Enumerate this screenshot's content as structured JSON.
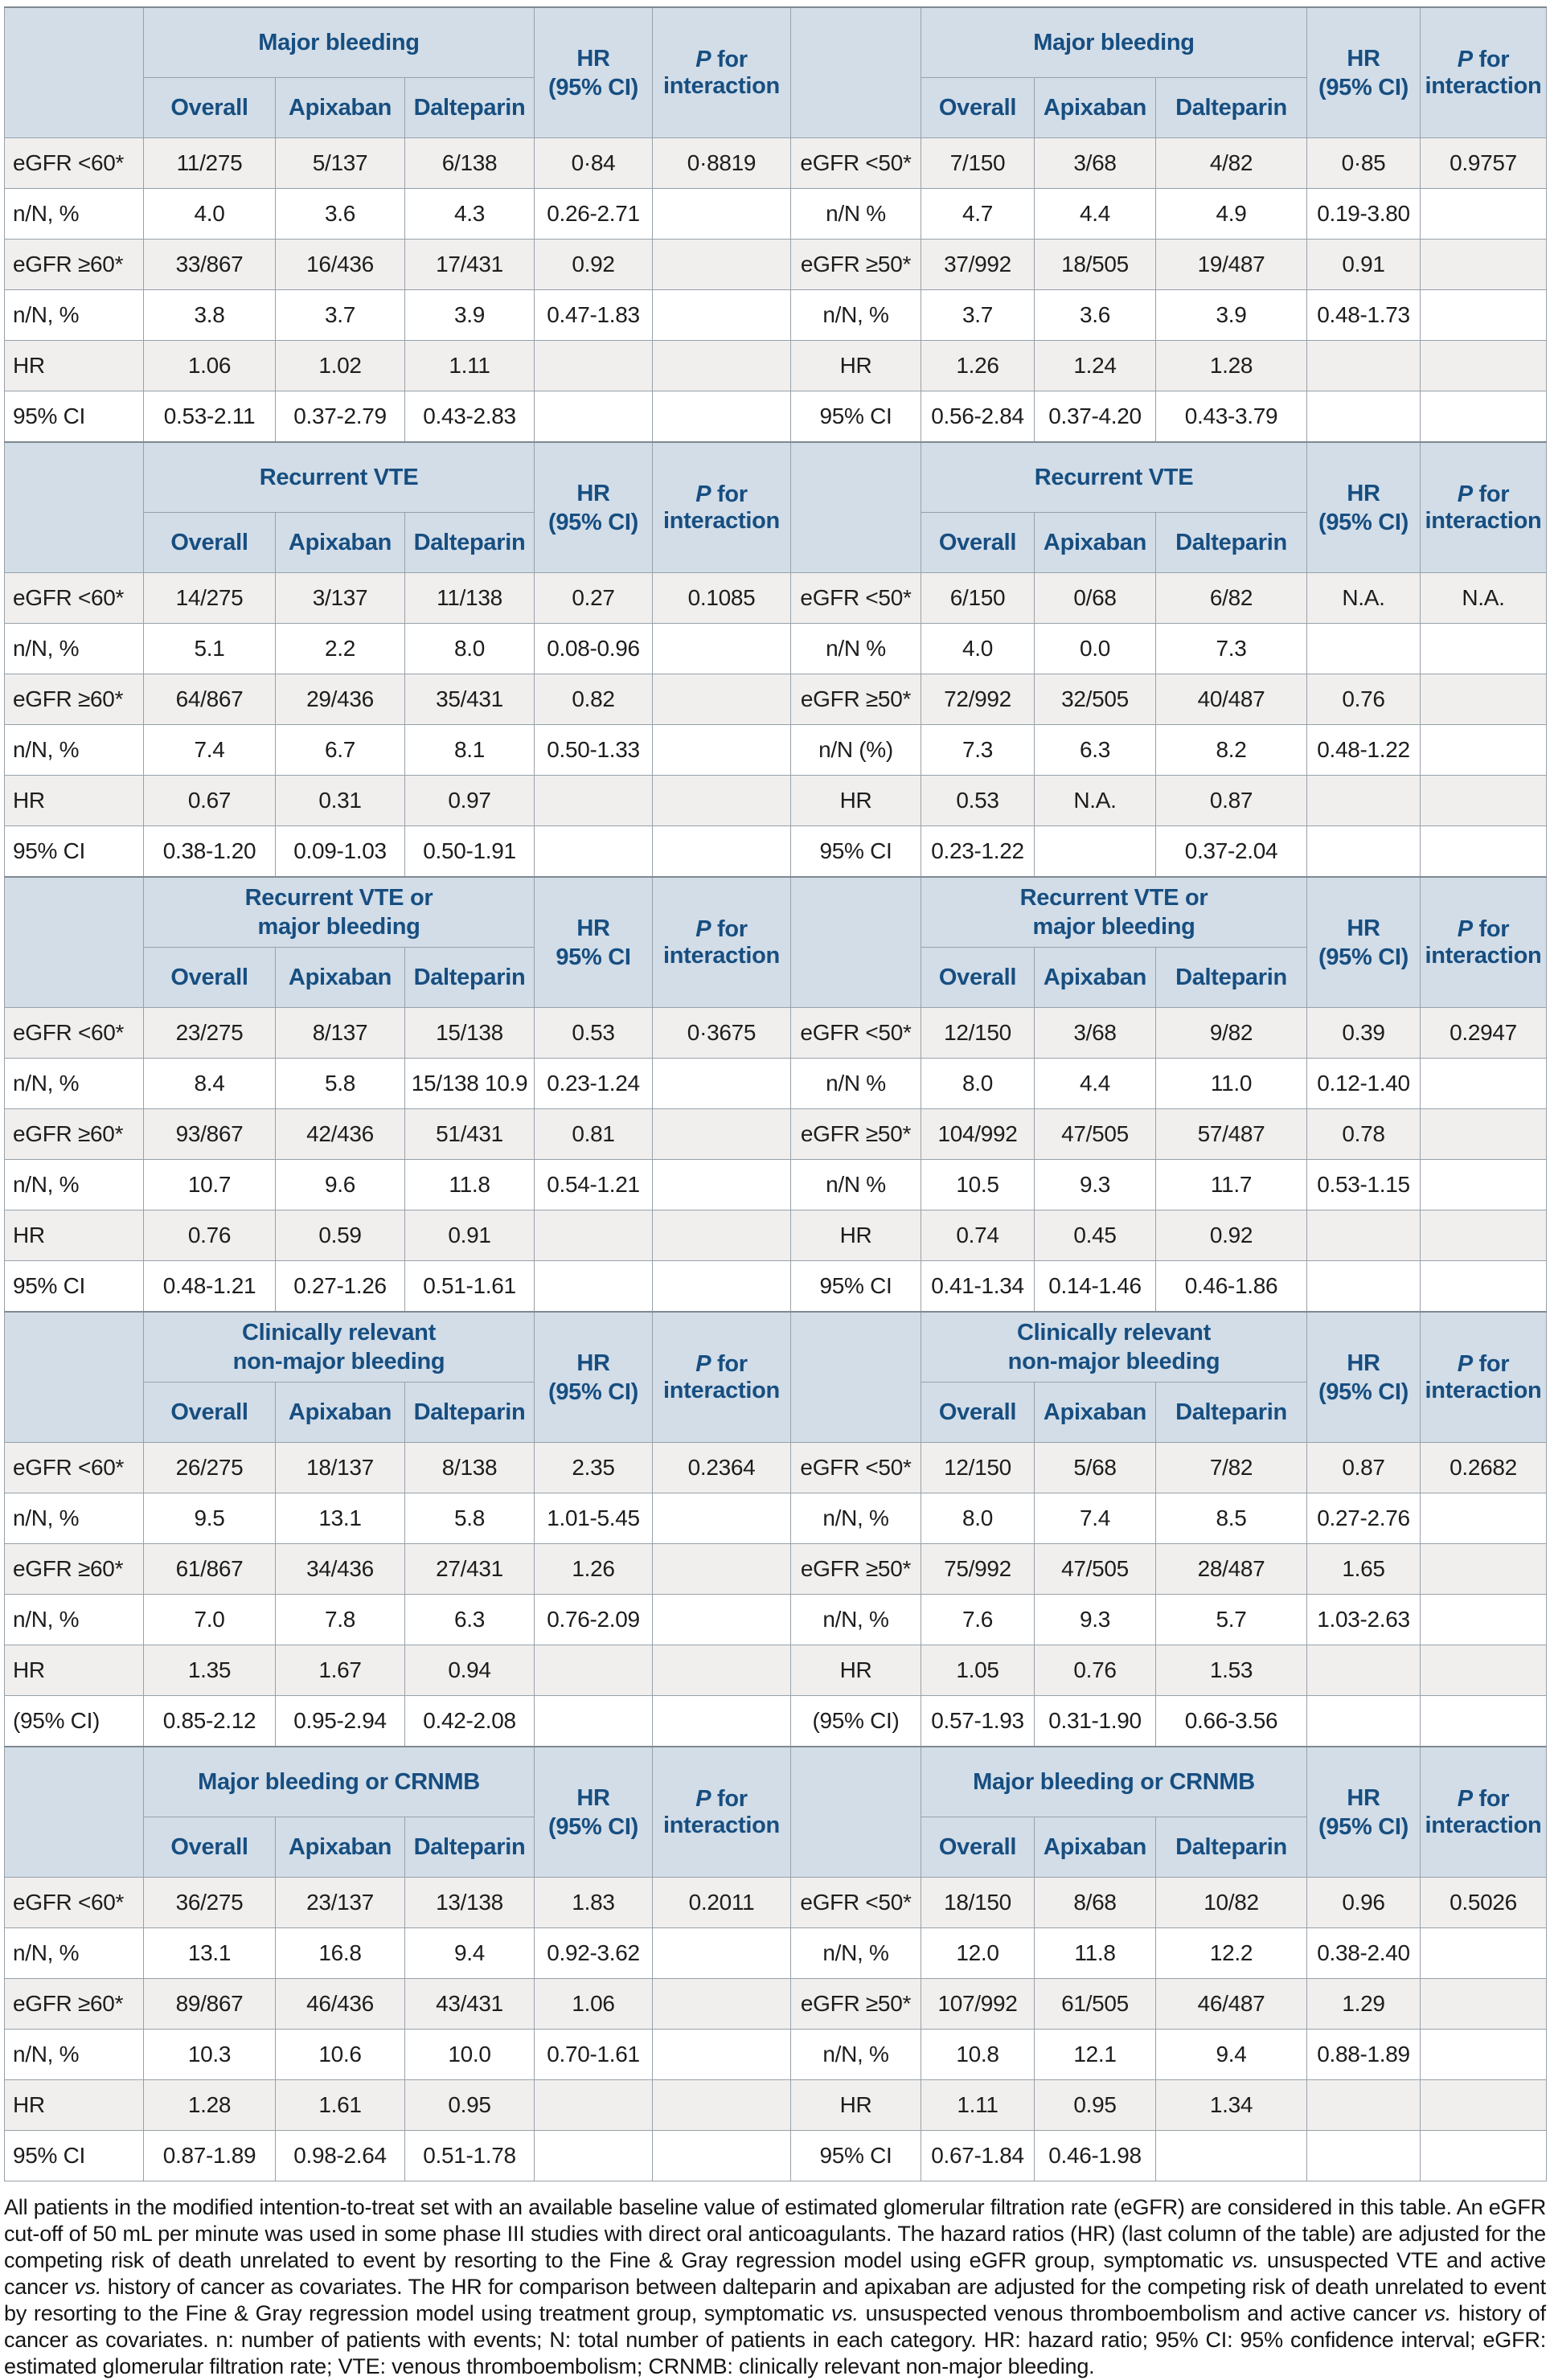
{
  "colors": {
    "header_bg": "#d2dde8",
    "header_text": "#174e80",
    "row_shaded": "#f0efee",
    "row_plain": "#ffffff",
    "border": "#97a1a9"
  },
  "table": {
    "subheaders": [
      "Overall",
      "Apixaban",
      "Dalteparin"
    ],
    "p_header": {
      "italic": "P",
      "rest": " for interaction"
    },
    "sections": [
      {
        "left": {
          "title": [
            "Major bleeding"
          ],
          "hr": [
            "HR",
            "(95% CI)"
          ],
          "rows": [
            {
              "label": "eGFR <60*",
              "overall": "11/275",
              "apixaban": "5/137",
              "dalteparin": "6/138",
              "hr": "0·84",
              "p": "0·8819"
            },
            {
              "label": "n/N, %",
              "overall": "4.0",
              "apixaban": "3.6",
              "dalteparin": "4.3",
              "hr": "0.26-2.71",
              "p": ""
            },
            {
              "label": "eGFR ≥60*",
              "overall": "33/867",
              "apixaban": "16/436",
              "dalteparin": "17/431",
              "hr": "0.92",
              "p": ""
            },
            {
              "label": "n/N, %",
              "overall": "3.8",
              "apixaban": "3.7",
              "dalteparin": "3.9",
              "hr": "0.47-1.83",
              "p": ""
            },
            {
              "label": "HR",
              "overall": "1.06",
              "apixaban": "1.02",
              "dalteparin": "1.11",
              "hr": "",
              "p": ""
            },
            {
              "label": "95% CI",
              "overall": "0.53-2.11",
              "apixaban": "0.37-2.79",
              "dalteparin": "0.43-2.83",
              "hr": "",
              "p": ""
            }
          ]
        },
        "right": {
          "title": [
            "Major bleeding"
          ],
          "hr": [
            "HR",
            "(95% CI)"
          ],
          "rows": [
            {
              "label": "eGFR <50*",
              "overall": "7/150",
              "apixaban": "3/68",
              "dalteparin": "4/82",
              "hr": "0·85",
              "p": "0.9757"
            },
            {
              "label": "n/N %",
              "overall": "4.7",
              "apixaban": "4.4",
              "dalteparin": "4.9",
              "hr": "0.19-3.80",
              "p": ""
            },
            {
              "label": "eGFR ≥50*",
              "overall": "37/992",
              "apixaban": "18/505",
              "dalteparin": "19/487",
              "hr": "0.91",
              "p": ""
            },
            {
              "label": "n/N, %",
              "overall": "3.7",
              "apixaban": "3.6",
              "dalteparin": "3.9",
              "hr": "0.48-1.73",
              "p": ""
            },
            {
              "label": "HR",
              "overall": "1.26",
              "apixaban": "1.24",
              "dalteparin": "1.28",
              "hr": "",
              "p": ""
            },
            {
              "label": "95% CI",
              "overall": "0.56-2.84",
              "apixaban": "0.37-4.20",
              "dalteparin": "0.43-3.79",
              "hr": "",
              "p": ""
            }
          ]
        }
      },
      {
        "left": {
          "title": [
            "Recurrent VTE"
          ],
          "hr": [
            "HR",
            "(95% CI)"
          ],
          "rows": [
            {
              "label": "eGFR <60*",
              "overall": "14/275",
              "apixaban": "3/137",
              "dalteparin": "11/138",
              "hr": "0.27",
              "p": "0.1085"
            },
            {
              "label": "n/N, %",
              "overall": "5.1",
              "apixaban": "2.2",
              "dalteparin": "8.0",
              "hr": "0.08-0.96",
              "p": ""
            },
            {
              "label": "eGFR ≥60*",
              "overall": "64/867",
              "apixaban": "29/436",
              "dalteparin": "35/431",
              "hr": "0.82",
              "p": ""
            },
            {
              "label": "n/N, %",
              "overall": "7.4",
              "apixaban": "6.7",
              "dalteparin": "8.1",
              "hr": "0.50-1.33",
              "p": ""
            },
            {
              "label": "HR",
              "overall": "0.67",
              "apixaban": "0.31",
              "dalteparin": "0.97",
              "hr": "",
              "p": ""
            },
            {
              "label": "95% CI",
              "overall": "0.38-1.20",
              "apixaban": "0.09-1.03",
              "dalteparin": "0.50-1.91",
              "hr": "",
              "p": ""
            }
          ]
        },
        "right": {
          "title": [
            "Recurrent VTE"
          ],
          "hr": [
            "HR",
            "(95% CI)"
          ],
          "rows": [
            {
              "label": "eGFR <50*",
              "overall": "6/150",
              "apixaban": "0/68",
              "dalteparin": "6/82",
              "hr": "N.A.",
              "p": "N.A."
            },
            {
              "label": "n/N %",
              "overall": "4.0",
              "apixaban": "0.0",
              "dalteparin": "7.3",
              "hr": "",
              "p": ""
            },
            {
              "label": "eGFR ≥50*",
              "overall": "72/992",
              "apixaban": "32/505",
              "dalteparin": "40/487",
              "hr": "0.76",
              "p": ""
            },
            {
              "label": "n/N (%)",
              "overall": "7.3",
              "apixaban": "6.3",
              "dalteparin": "8.2",
              "hr": "0.48-1.22",
              "p": ""
            },
            {
              "label": "HR",
              "overall": "0.53",
              "apixaban": "N.A.",
              "dalteparin": "0.87",
              "hr": "",
              "p": ""
            },
            {
              "label": "95% CI",
              "overall": "0.23-1.22",
              "apixaban": "",
              "dalteparin": "0.37-2.04",
              "hr": "",
              "p": ""
            }
          ]
        }
      },
      {
        "left": {
          "title": [
            "Recurrent VTE or",
            "major bleeding"
          ],
          "hr": [
            "HR",
            "95% CI"
          ],
          "rows": [
            {
              "label": "eGFR <60*",
              "overall": "23/275",
              "apixaban": "8/137",
              "dalteparin": "15/138",
              "hr": "0.53",
              "p": "0·3675"
            },
            {
              "label": "n/N, %",
              "overall": "8.4",
              "apixaban": "5.8",
              "dalteparin": "15/138 10.9",
              "hr": "0.23-1.24",
              "p": ""
            },
            {
              "label": "eGFR ≥60*",
              "overall": "93/867",
              "apixaban": "42/436",
              "dalteparin": "51/431",
              "hr": "0.81",
              "p": ""
            },
            {
              "label": "n/N, %",
              "overall": "10.7",
              "apixaban": "9.6",
              "dalteparin": "11.8",
              "hr": "0.54-1.21",
              "p": ""
            },
            {
              "label": "HR",
              "overall": "0.76",
              "apixaban": "0.59",
              "dalteparin": "0.91",
              "hr": "",
              "p": ""
            },
            {
              "label": "95% CI",
              "overall": "0.48-1.21",
              "apixaban": "0.27-1.26",
              "dalteparin": "0.51-1.61",
              "hr": "",
              "p": ""
            }
          ]
        },
        "right": {
          "title": [
            "Recurrent VTE or",
            "major bleeding"
          ],
          "hr": [
            "HR",
            "(95% CI)"
          ],
          "rows": [
            {
              "label": "eGFR <50*",
              "overall": "12/150",
              "apixaban": "3/68",
              "dalteparin": "9/82",
              "hr": "0.39",
              "p": "0.2947"
            },
            {
              "label": "n/N %",
              "overall": "8.0",
              "apixaban": "4.4",
              "dalteparin": "11.0",
              "hr": "0.12-1.40",
              "p": ""
            },
            {
              "label": "eGFR ≥50*",
              "overall": "104/992",
              "apixaban": "47/505",
              "dalteparin": "57/487",
              "hr": "0.78",
              "p": ""
            },
            {
              "label": "n/N %",
              "overall": "10.5",
              "apixaban": "9.3",
              "dalteparin": "11.7",
              "hr": "0.53-1.15",
              "p": ""
            },
            {
              "label": "HR",
              "overall": "0.74",
              "apixaban": "0.45",
              "dalteparin": "0.92",
              "hr": "",
              "p": ""
            },
            {
              "label": "95% CI",
              "overall": "0.41-1.34",
              "apixaban": "0.14-1.46",
              "dalteparin": "0.46-1.86",
              "hr": "",
              "p": ""
            }
          ]
        }
      },
      {
        "left": {
          "title": [
            "Clinically relevant",
            "non-major bleeding"
          ],
          "hr": [
            "HR",
            "(95% CI)"
          ],
          "rows": [
            {
              "label": "eGFR <60*",
              "overall": "26/275",
              "apixaban": "18/137",
              "dalteparin": "8/138",
              "hr": "2.35",
              "p": "0.2364"
            },
            {
              "label": "n/N, %",
              "overall": "9.5",
              "apixaban": "13.1",
              "dalteparin": "5.8",
              "hr": "1.01-5.45",
              "p": ""
            },
            {
              "label": "eGFR ≥60*",
              "overall": "61/867",
              "apixaban": "34/436",
              "dalteparin": "27/431",
              "hr": "1.26",
              "p": ""
            },
            {
              "label": "n/N, %",
              "overall": "7.0",
              "apixaban": "7.8",
              "dalteparin": "6.3",
              "hr": "0.76-2.09",
              "p": ""
            },
            {
              "label": "HR",
              "overall": "1.35",
              "apixaban": "1.67",
              "dalteparin": "0.94",
              "hr": "",
              "p": ""
            },
            {
              "label": "(95% CI)",
              "overall": "0.85-2.12",
              "apixaban": "0.95-2.94",
              "dalteparin": "0.42-2.08",
              "hr": "",
              "p": ""
            }
          ]
        },
        "right": {
          "title": [
            "Clinically relevant",
            "non-major bleeding"
          ],
          "hr": [
            "HR",
            "(95% CI)"
          ],
          "rows": [
            {
              "label": "eGFR <50*",
              "overall": "12/150",
              "apixaban": "5/68",
              "dalteparin": "7/82",
              "hr": "0.87",
              "p": "0.2682"
            },
            {
              "label": "n/N, %",
              "overall": "8.0",
              "apixaban": "7.4",
              "dalteparin": "8.5",
              "hr": "0.27-2.76",
              "p": ""
            },
            {
              "label": "eGFR ≥50*",
              "overall": "75/992",
              "apixaban": "47/505",
              "dalteparin": "28/487",
              "hr": "1.65",
              "p": ""
            },
            {
              "label": "n/N, %",
              "overall": "7.6",
              "apixaban": "9.3",
              "dalteparin": "5.7",
              "hr": "1.03-2.63",
              "p": ""
            },
            {
              "label": "HR",
              "overall": "1.05",
              "apixaban": "0.76",
              "dalteparin": "1.53",
              "hr": "",
              "p": ""
            },
            {
              "label": "(95% CI)",
              "overall": "0.57-1.93",
              "apixaban": "0.31-1.90",
              "dalteparin": "0.66-3.56",
              "hr": "",
              "p": ""
            }
          ]
        }
      },
      {
        "left": {
          "title": [
            "Major bleeding or CRNMB"
          ],
          "hr": [
            "HR",
            "(95% CI)"
          ],
          "rows": [
            {
              "label": "eGFR <60*",
              "overall": "36/275",
              "apixaban": "23/137",
              "dalteparin": "13/138",
              "hr": "1.83",
              "p": "0.2011"
            },
            {
              "label": "n/N, %",
              "overall": "13.1",
              "apixaban": "16.8",
              "dalteparin": "9.4",
              "hr": "0.92-3.62",
              "p": ""
            },
            {
              "label": "eGFR ≥60*",
              "overall": "89/867",
              "apixaban": "46/436",
              "dalteparin": "43/431",
              "hr": "1.06",
              "p": ""
            },
            {
              "label": "n/N, %",
              "overall": "10.3",
              "apixaban": "10.6",
              "dalteparin": "10.0",
              "hr": "0.70-1.61",
              "p": ""
            },
            {
              "label": "HR",
              "overall": "1.28",
              "apixaban": "1.61",
              "dalteparin": "0.95",
              "hr": "",
              "p": ""
            },
            {
              "label": "95% CI",
              "overall": "0.87-1.89",
              "apixaban": "0.98-2.64",
              "dalteparin": "0.51-1.78",
              "hr": "",
              "p": ""
            }
          ]
        },
        "right": {
          "title": [
            "Major bleeding or CRNMB"
          ],
          "hr": [
            "HR",
            "(95% CI)"
          ],
          "rows": [
            {
              "label": "eGFR <50*",
              "overall": "18/150",
              "apixaban": "8/68",
              "dalteparin": "10/82",
              "hr": "0.96",
              "p": "0.5026"
            },
            {
              "label": "n/N, %",
              "overall": "12.0",
              "apixaban": "11.8",
              "dalteparin": "12.2",
              "hr": "0.38-2.40",
              "p": ""
            },
            {
              "label": "eGFR ≥50*",
              "overall": "107/992",
              "apixaban": "61/505",
              "dalteparin": "46/487",
              "hr": "1.29",
              "p": ""
            },
            {
              "label": "n/N, %",
              "overall": "10.8",
              "apixaban": "12.1",
              "dalteparin": "9.4",
              "hr": "0.88-1.89",
              "p": ""
            },
            {
              "label": "HR",
              "overall": "1.11",
              "apixaban": "0.95",
              "dalteparin": "1.34",
              "hr": "",
              "p": ""
            },
            {
              "label": "95% CI",
              "overall": "0.67-1.84",
              "apixaban": "0.46-1.98",
              "dalteparin": "",
              "hr": "",
              "p": ""
            }
          ]
        }
      }
    ]
  },
  "footnote": {
    "parts": [
      {
        "text": "All patients in the modified intention-to-treat set with an available baseline value of estimated glomerular filtration rate (eGFR) are considered in this table. An eGFR cut-off of 50 mL per minute was used in some phase III studies with direct oral anticoagulants.  The hazard ratios (HR) (last column of the table) are adjusted for the competing risk of death unrelated to event by resorting to the Fine & Gray regression model using eGFR group, symptomatic ",
        "italic": false
      },
      {
        "text": "vs.",
        "italic": true
      },
      {
        "text": " unsuspected VTE and active cancer ",
        "italic": false
      },
      {
        "text": "vs.",
        "italic": true
      },
      {
        "text": " history of cancer as covariates. The HR for comparison between dalteparin and apixaban are adjusted for the competing risk of death unrelated to event by resorting to the Fine & Gray regression model using treatment group, symptomatic ",
        "italic": false
      },
      {
        "text": "vs.",
        "italic": true
      },
      {
        "text": " unsuspected venous thromboembolism and active cancer ",
        "italic": false
      },
      {
        "text": "vs.",
        "italic": true
      },
      {
        "text": " history of cancer as covariates. n: number of patients with events; N: total number of patients in each category. HR: hazard ratio; 95% CI: 95% confidence interval; eGFR: estimated glomerular filtration rate; VTE: venous thromboembolism; CRNMB: clinically relevant non-major bleeding.",
        "italic": false
      }
    ]
  }
}
